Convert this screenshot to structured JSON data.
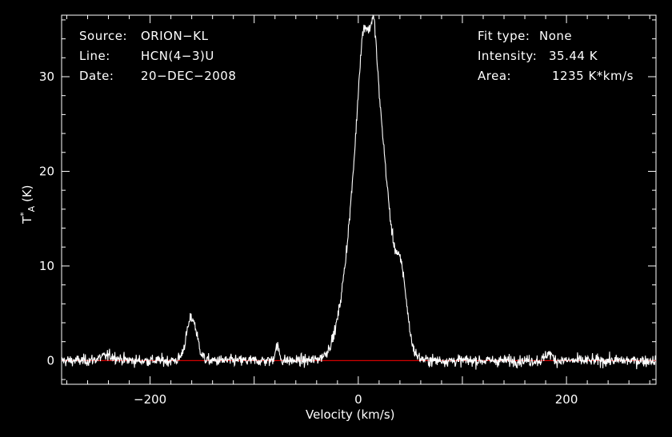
{
  "chart_data": {
    "type": "line",
    "title": "",
    "xlabel": "Velocity (km/s)",
    "ylabel": "T*A (K)",
    "xlim": [
      -285,
      286
    ],
    "ylim": [
      -2.5,
      36.5
    ],
    "xticks": [
      -200,
      0,
      200
    ],
    "xtick_labels": [
      "−200",
      "0",
      "200"
    ],
    "yticks": [
      0,
      10,
      20,
      30
    ],
    "ytick_labels": [
      "0",
      "10",
      "20",
      "30"
    ],
    "grid": false,
    "baseline": {
      "value": 0,
      "color": "#d40000"
    },
    "series": [
      {
        "color": "#ffffff",
        "components": [
          {
            "kind": "gaussian",
            "center": 11,
            "amplitude": 33.0,
            "sigma": 15.5
          },
          {
            "kind": "gaussian",
            "center": 4,
            "amplitude": 4.5,
            "sigma": 4
          },
          {
            "kind": "gaussian",
            "center": 15,
            "amplitude": 4.0,
            "sigma": 2.5
          },
          {
            "kind": "gaussian",
            "center": 42,
            "amplitude": 5.5,
            "sigma": 5
          },
          {
            "kind": "gaussian",
            "center": -160,
            "amplitude": 4.5,
            "sigma": 5
          },
          {
            "kind": "gaussian",
            "center": -78,
            "amplitude": 1.5,
            "sigma": 2
          },
          {
            "kind": "gaussian",
            "center": 183,
            "amplitude": 0.8,
            "sigma": 3
          },
          {
            "kind": "gaussian",
            "center": -240,
            "amplitude": 0.5,
            "sigma": 8
          }
        ],
        "noise_sigma": 0.3,
        "peak_value": 35.44
      }
    ]
  },
  "header_left": {
    "source_label": "Source:",
    "source_value": "ORION−KL",
    "line_label": "Line:",
    "line_value": "HCN(4−3)U",
    "date_label": "Date:",
    "date_value": "20−DEC−2008"
  },
  "header_right": {
    "fit_label": "Fit type:",
    "fit_value": "None",
    "intensity_label": "Intensity:",
    "intensity_value": "35.44 K",
    "area_label": "Area:",
    "area_value": "1235 K*km/s"
  },
  "axis_texts": {
    "x": "Velocity (km/s)",
    "y_main": "T",
    "y_sup": "*",
    "y_sub": "A",
    "y_unit": " (K)"
  }
}
